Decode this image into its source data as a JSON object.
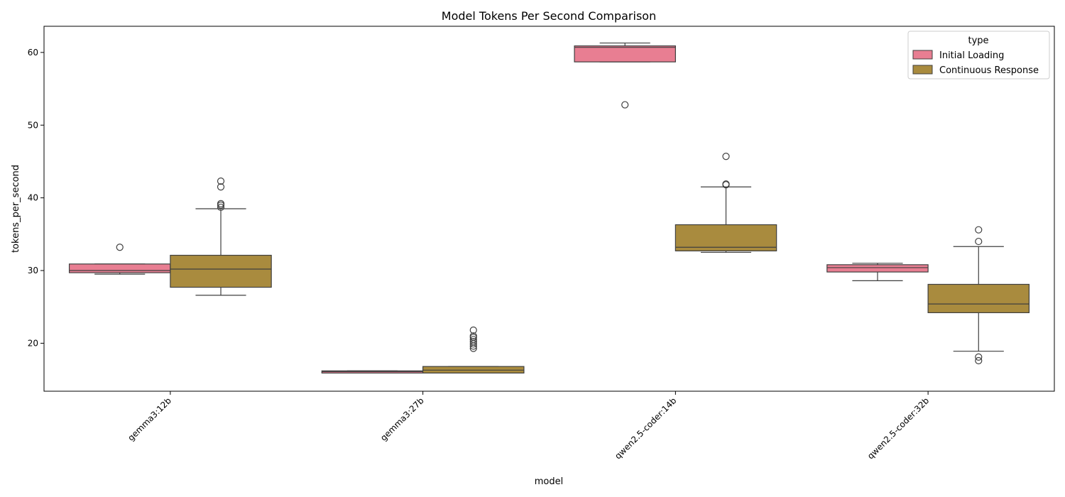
{
  "chart_data": {
    "type": "box",
    "title": "Model Tokens Per Second Comparison",
    "xlabel": "model",
    "ylabel": "tokens_per_second",
    "ylim": [
      13.4,
      63.6
    ],
    "yticks": [
      20,
      30,
      40,
      50,
      60
    ],
    "grid": false,
    "categories": [
      "gemma3:12b",
      "gemma3:27b",
      "qwen2.5-coder:14b",
      "qwen2.5-coder:32b"
    ],
    "legend": {
      "title": "type",
      "placement": "top-right"
    },
    "series": [
      {
        "name": "Initial Loading",
        "color": "#e87e92",
        "boxes": [
          {
            "category": "gemma3:12b",
            "whisker_low": 29.5,
            "q1": 29.7,
            "median": 30.0,
            "q3": 30.9,
            "whisker_high": 30.9,
            "outliers": [
              33.2
            ]
          },
          {
            "category": "gemma3:27b",
            "whisker_low": 15.9,
            "q1": 15.9,
            "median": 16.1,
            "q3": 16.2,
            "whisker_high": 16.2,
            "outliers": []
          },
          {
            "category": "qwen2.5-coder:14b",
            "whisker_low": 58.7,
            "q1": 58.7,
            "median": 60.7,
            "q3": 60.9,
            "whisker_high": 61.3,
            "outliers": [
              52.8
            ]
          },
          {
            "category": "qwen2.5-coder:32b",
            "whisker_low": 28.6,
            "q1": 29.8,
            "median": 30.4,
            "q3": 30.8,
            "whisker_high": 31.0,
            "outliers": []
          }
        ]
      },
      {
        "name": "Continuous Response",
        "color": "#a98b3e",
        "boxes": [
          {
            "category": "gemma3:12b",
            "whisker_low": 26.6,
            "q1": 27.7,
            "median": 30.2,
            "q3": 32.1,
            "whisker_high": 38.5,
            "outliers": [
              38.7,
              39.0,
              39.2,
              41.5,
              42.3
            ]
          },
          {
            "category": "gemma3:27b",
            "whisker_low": 15.9,
            "q1": 15.9,
            "median": 16.3,
            "q3": 16.8,
            "whisker_high": 16.8,
            "outliers": [
              19.3,
              19.6,
              19.9,
              20.2,
              20.5,
              20.8,
              21.0,
              21.8
            ]
          },
          {
            "category": "qwen2.5-coder:14b",
            "whisker_low": 32.5,
            "q1": 32.7,
            "median": 33.2,
            "q3": 36.3,
            "whisker_high": 41.5,
            "outliers": [
              41.8,
              41.9,
              45.7
            ]
          },
          {
            "category": "qwen2.5-coder:32b",
            "whisker_low": 18.9,
            "q1": 24.2,
            "median": 25.4,
            "q3": 28.1,
            "whisker_high": 33.3,
            "outliers": [
              17.6,
              18.1,
              34.0,
              35.6
            ]
          }
        ]
      }
    ]
  }
}
